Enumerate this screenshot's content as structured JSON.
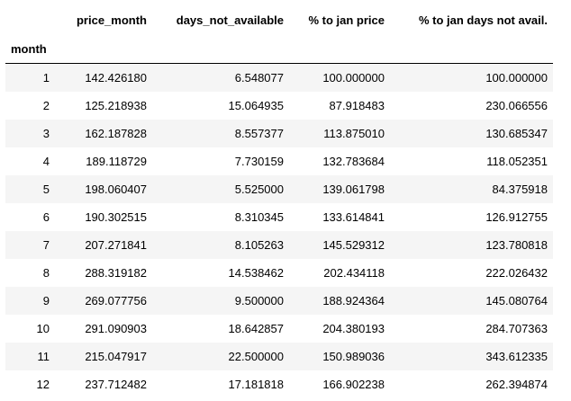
{
  "table": {
    "index_name": "month",
    "columns": [
      "price_month",
      "days_not_available",
      "% to jan price",
      "% to jan days not avail."
    ],
    "rows": [
      {
        "index": "1",
        "price_month": "142.426180",
        "days_not_available": "6.548077",
        "pct_jan_price": "100.000000",
        "pct_jan_days": "100.000000"
      },
      {
        "index": "2",
        "price_month": "125.218938",
        "days_not_available": "15.064935",
        "pct_jan_price": "87.918483",
        "pct_jan_days": "230.066556"
      },
      {
        "index": "3",
        "price_month": "162.187828",
        "days_not_available": "8.557377",
        "pct_jan_price": "113.875010",
        "pct_jan_days": "130.685347"
      },
      {
        "index": "4",
        "price_month": "189.118729",
        "days_not_available": "7.730159",
        "pct_jan_price": "132.783684",
        "pct_jan_days": "118.052351"
      },
      {
        "index": "5",
        "price_month": "198.060407",
        "days_not_available": "5.525000",
        "pct_jan_price": "139.061798",
        "pct_jan_days": "84.375918"
      },
      {
        "index": "6",
        "price_month": "190.302515",
        "days_not_available": "8.310345",
        "pct_jan_price": "133.614841",
        "pct_jan_days": "126.912755"
      },
      {
        "index": "7",
        "price_month": "207.271841",
        "days_not_available": "8.105263",
        "pct_jan_price": "145.529312",
        "pct_jan_days": "123.780818"
      },
      {
        "index": "8",
        "price_month": "288.319182",
        "days_not_available": "14.538462",
        "pct_jan_price": "202.434118",
        "pct_jan_days": "222.026432"
      },
      {
        "index": "9",
        "price_month": "269.077756",
        "days_not_available": "9.500000",
        "pct_jan_price": "188.924364",
        "pct_jan_days": "145.080764"
      },
      {
        "index": "10",
        "price_month": "291.090903",
        "days_not_available": "18.642857",
        "pct_jan_price": "204.380193",
        "pct_jan_days": "284.707363"
      },
      {
        "index": "11",
        "price_month": "215.047917",
        "days_not_available": "22.500000",
        "pct_jan_price": "150.989036",
        "pct_jan_days": "343.612335"
      },
      {
        "index": "12",
        "price_month": "237.712482",
        "days_not_available": "17.181818",
        "pct_jan_price": "166.902238",
        "pct_jan_days": "262.394874"
      }
    ]
  },
  "colors": {
    "striped_row": "#f5f5f5",
    "header_rule": "#000000"
  }
}
